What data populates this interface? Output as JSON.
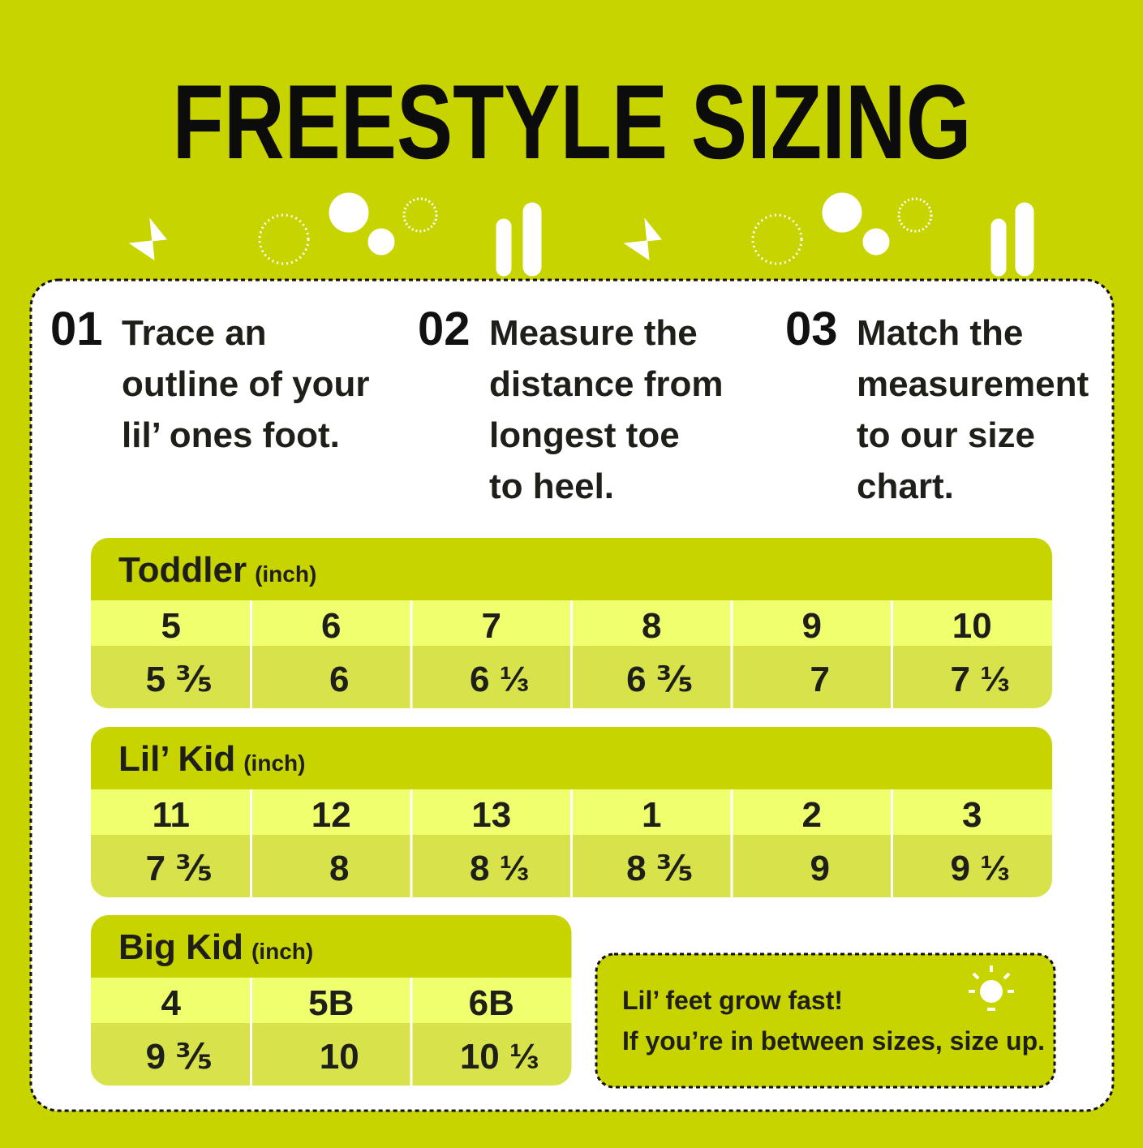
{
  "header": {
    "title": "FREESTYLE SIZING"
  },
  "steps": [
    {
      "number": "01",
      "lines": [
        "Trace an",
        "outline of your",
        "lil’ ones foot."
      ]
    },
    {
      "number": "02",
      "lines": [
        "Measure the",
        "distance from",
        "longest toe",
        "to heel."
      ]
    },
    {
      "number": "03",
      "lines": [
        "Match the",
        "measurement",
        "to our size",
        "chart."
      ]
    }
  ],
  "tables": [
    {
      "title": "Toddler",
      "unit": "(inch)",
      "sizes": [
        "5",
        "6",
        "7",
        "8",
        "9",
        "10"
      ],
      "inches": [
        "5 ⅗",
        "6",
        "6 ⅓",
        "6 ⅗",
        "7",
        "7 ⅓"
      ]
    },
    {
      "title": "Lil’ Kid",
      "unit": "(inch)",
      "sizes": [
        "11",
        "12",
        "13",
        "1",
        "2",
        "3"
      ],
      "inches": [
        "7 ⅗",
        "8",
        "8 ⅓",
        "8 ⅗",
        "9",
        "9 ⅓"
      ]
    },
    {
      "title": "Big Kid",
      "unit": "(inch)",
      "sizes": [
        "4",
        "5B",
        "6B"
      ],
      "inches": [
        "9 ⅗",
        "10",
        "10 ⅓"
      ]
    }
  ],
  "note": {
    "lines": [
      "Lil’ feet grow fast!",
      "If you’re in between sizes, size up."
    ]
  }
}
